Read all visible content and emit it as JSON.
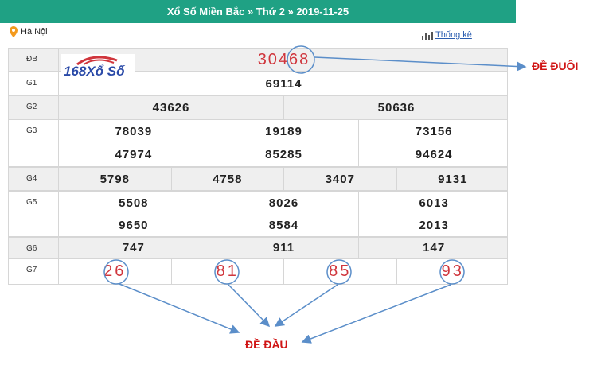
{
  "header": {
    "title": "Xổ Số Miền Bắc » Thứ 2 » 2019-11-25"
  },
  "location": "Hà Nội",
  "stats_link": "Thống kê",
  "logo": "168Xổ Số",
  "table": {
    "rows": [
      {
        "label": "ĐB",
        "lines": [
          [
            "30468"
          ]
        ]
      },
      {
        "label": "G1",
        "lines": [
          [
            "69114"
          ]
        ]
      },
      {
        "label": "G2",
        "lines": [
          [
            "43626",
            "50636"
          ]
        ]
      },
      {
        "label": "G3",
        "lines": [
          [
            "78039",
            "19189",
            "73156"
          ],
          [
            "47974",
            "85285",
            "94624"
          ]
        ]
      },
      {
        "label": "G4",
        "lines": [
          [
            "5798",
            "4758",
            "3407",
            "9131"
          ]
        ]
      },
      {
        "label": "G5",
        "lines": [
          [
            "5508",
            "8026",
            "6013"
          ],
          [
            "9650",
            "8584",
            "2013"
          ]
        ]
      },
      {
        "label": "G6",
        "lines": [
          [
            "747",
            "911",
            "147"
          ]
        ]
      },
      {
        "label": "G7",
        "lines": [
          [
            "26",
            "81",
            "85",
            "93"
          ]
        ]
      }
    ]
  },
  "annotations": {
    "tail": "ĐỀ ĐUÔI",
    "head": "ĐỀ ĐẦU"
  }
}
